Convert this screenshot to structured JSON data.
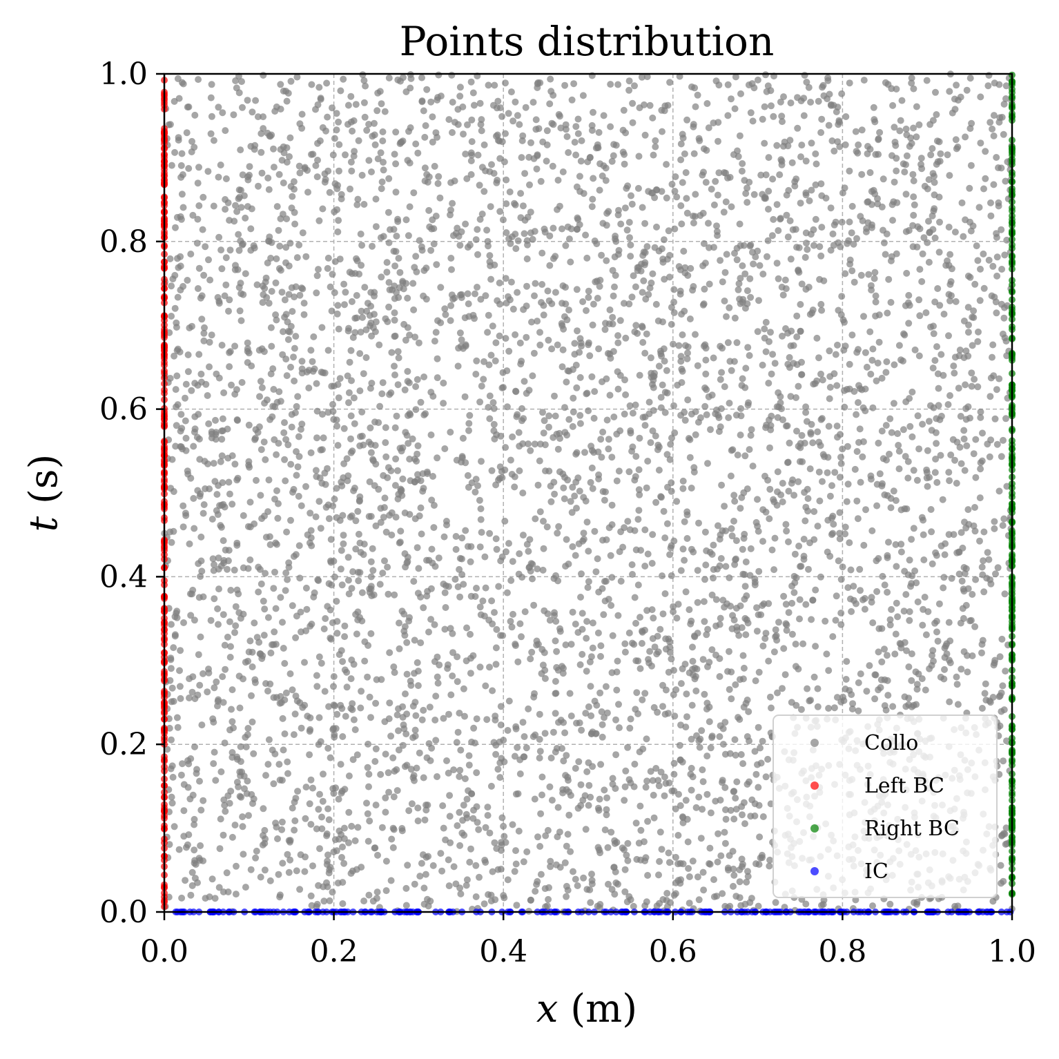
{
  "chart_data": {
    "type": "scatter",
    "title": "Points distribution",
    "xlabel": {
      "var": "x",
      "unit": " (m)"
    },
    "ylabel": {
      "var": "t",
      "unit": " (s)"
    },
    "xlim": [
      0.0,
      1.0
    ],
    "ylim": [
      0.0,
      1.0
    ],
    "xticks": [
      "0.0",
      "0.2",
      "0.4",
      "0.6",
      "0.8",
      "1.0"
    ],
    "yticks": [
      "0.0",
      "0.2",
      "0.4",
      "0.6",
      "0.8",
      "1.0"
    ],
    "xtick_values": [
      0.0,
      0.2,
      0.4,
      0.6,
      0.8,
      1.0
    ],
    "ytick_values": [
      0.0,
      0.2,
      0.4,
      0.6,
      0.8,
      1.0
    ],
    "grid": true,
    "grid_style": "dashed",
    "legend_position": "lower-right",
    "series": [
      {
        "name": "Collo",
        "color": "#808080",
        "distribution": "uniform-random",
        "x_range": [
          0.0,
          1.0
        ],
        "y_range": [
          0.0,
          1.0
        ],
        "approx_count": 5000
      },
      {
        "name": "Left BC",
        "color": "#ff0000",
        "x": 0.0,
        "y_range": [
          0.0,
          1.0
        ],
        "approx_count": 250
      },
      {
        "name": "Right BC",
        "color": "#008000",
        "x": 1.0,
        "y_range": [
          0.0,
          1.0
        ],
        "approx_count": 250
      },
      {
        "name": "IC",
        "color": "#0000ff",
        "y": 0.0,
        "x_range": [
          0.0,
          1.0
        ],
        "approx_count": 250
      }
    ]
  }
}
